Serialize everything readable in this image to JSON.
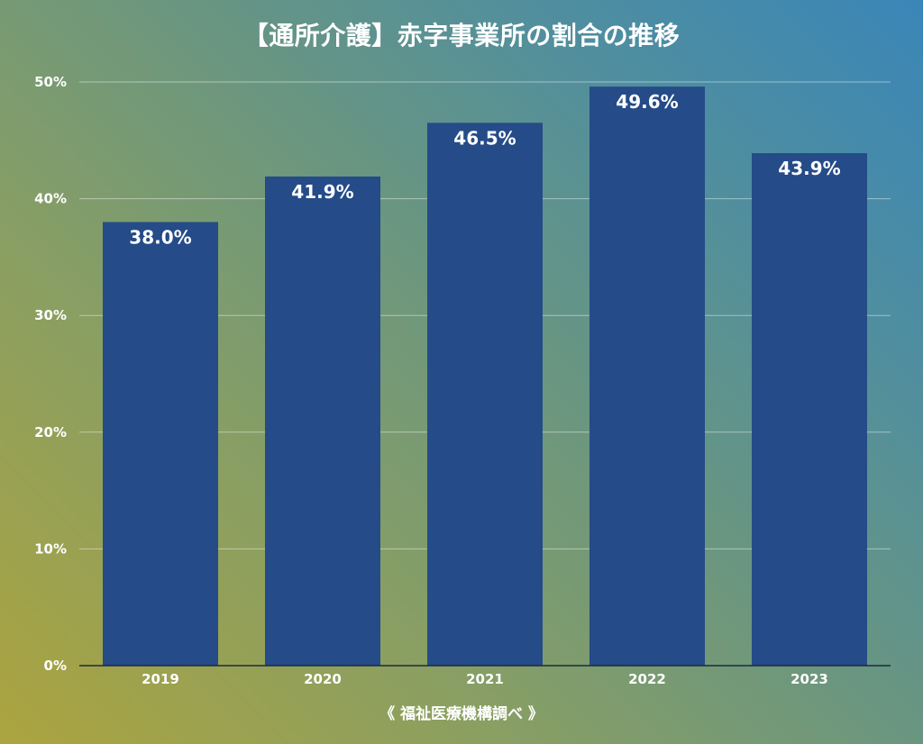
{
  "chart": {
    "title": "【通所介護】赤字事業所の割合の推移",
    "source": "《 福祉医療機構調べ 》"
  },
  "colors": {
    "bar": "#254b88",
    "gridline": "rgba(255,255,255,0.45)",
    "axis": "#1d2a3a",
    "text": "#ffffff"
  },
  "chart_data": {
    "type": "bar",
    "title": "【通所介護】赤字事業所の割合の推移",
    "xlabel": "",
    "ylabel": "",
    "categories": [
      "2019",
      "2020",
      "2021",
      "2022",
      "2023"
    ],
    "values": [
      38.0,
      41.9,
      46.5,
      49.6,
      43.9
    ],
    "data_labels": [
      "38.0%",
      "41.9%",
      "46.5%",
      "49.6%",
      "43.9%"
    ],
    "ylim": [
      0,
      50
    ],
    "yticks": [
      0,
      10,
      20,
      30,
      40,
      50
    ],
    "ytick_labels": [
      "0%",
      "10%",
      "20%",
      "30%",
      "40%",
      "50%"
    ],
    "grid": true,
    "legend": "none",
    "source_note": "《 福祉医療機構調べ 》"
  }
}
